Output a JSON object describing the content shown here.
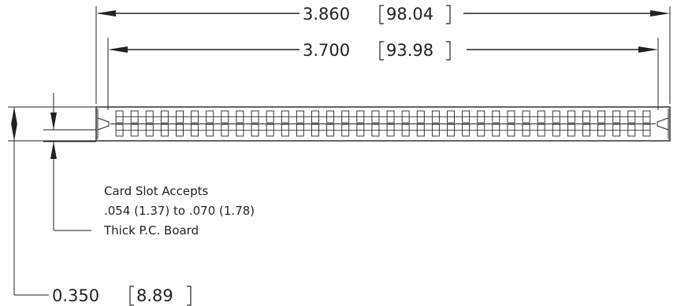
{
  "dimensions": {
    "overall_length": {
      "inch": "3.860",
      "mm": "98.04"
    },
    "mounting_length": {
      "inch": "3.700",
      "mm": "93.98"
    },
    "height": {
      "inch": "0.350",
      "mm": "8.89"
    }
  },
  "card_slot_note": {
    "line1": "Card Slot Accepts",
    "line2": ".054 (1.37) to .070 (1.78)",
    "line3": "Thick P.C. Board"
  },
  "connector": {
    "contact_rows": 2,
    "contacts_per_row": 36
  }
}
